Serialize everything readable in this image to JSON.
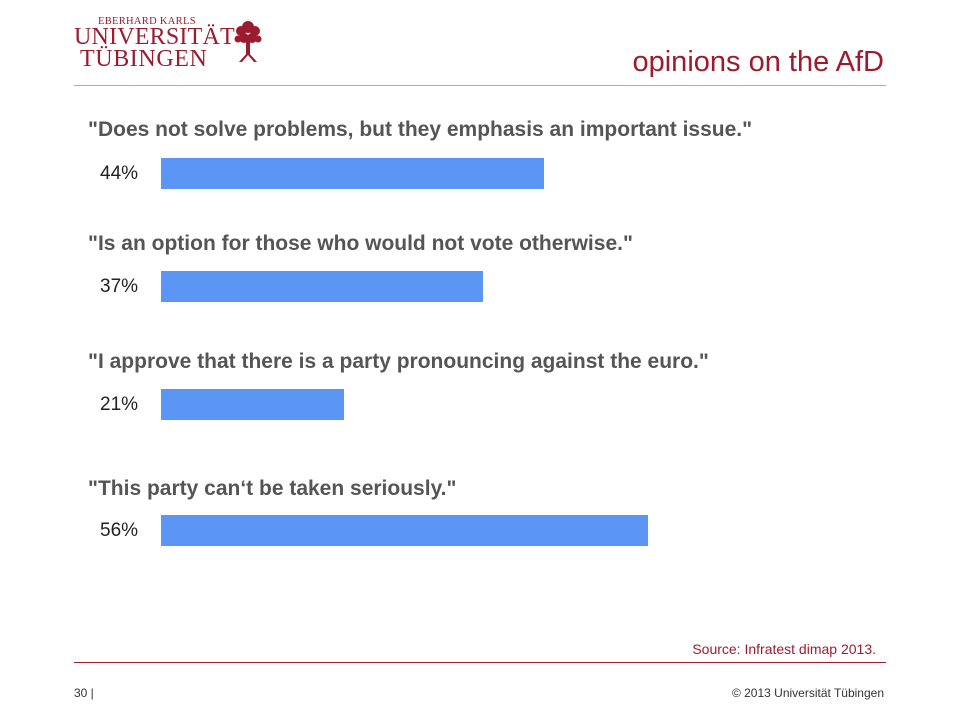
{
  "header": {
    "logo_line_small": "EBERHARD KARLS",
    "logo_line_1": "UNIVERSITÄT",
    "logo_line_2": "TÜBINGEN",
    "logo_icon": "tree-icon",
    "title": "opinions on the AfD"
  },
  "chart_data": {
    "type": "bar",
    "orientation": "horizontal",
    "categories": [
      "\"Does not solve problems, but they emphasis an important issue.\"",
      "\"Is an option for those who would not vote otherwise.\"",
      "\"I approve that there is a party pronouncing against the euro.\"",
      "\"This party can‘t be taken seriously.\""
    ],
    "values": [
      44,
      37,
      21,
      56
    ],
    "value_labels": [
      "44%",
      "37%",
      "21%",
      "56%"
    ],
    "unit": "%",
    "xlim": [
      0,
      100
    ],
    "grid": false,
    "bar_color": "#5b96f5"
  },
  "source": "Source: Infratest dimap 2013.",
  "footer": {
    "page": "30 |",
    "copyright": "© 2013 Universität Tübingen"
  },
  "colors": {
    "accent": "#a01a2d",
    "bar": "#5b96f5"
  }
}
